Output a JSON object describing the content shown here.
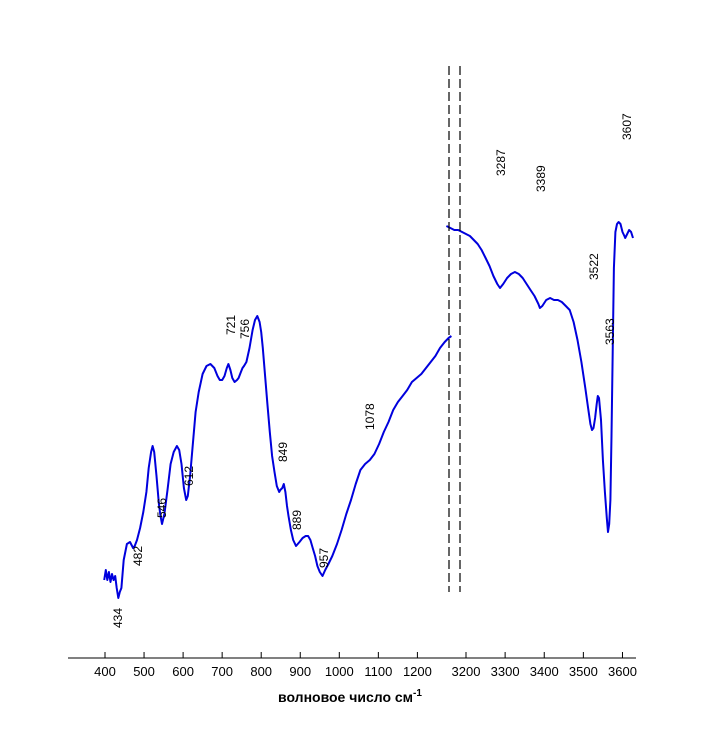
{
  "chart_data": {
    "type": "line",
    "title": "",
    "xlabel": "волновое число см",
    "xlabel_superscript": "-1",
    "ylabel": "",
    "grid": false,
    "axis_break": [
      1290,
      3150
    ],
    "xlim_left": [
      370,
      1290
    ],
    "xlim_right": [
      3150,
      3630
    ],
    "tick_labels": [
      "400",
      "500",
      "600",
      "700",
      "800",
      "900",
      "1000",
      "1100",
      "1200",
      "3200",
      "3300",
      "3400",
      "3500",
      "3600"
    ],
    "ticks_left": [
      400,
      500,
      600,
      700,
      800,
      900,
      1000,
      1100,
      1200
    ],
    "ticks_right": [
      3200,
      3300,
      3400,
      3500,
      3600
    ],
    "peak_labels": [
      "434",
      "482",
      "546",
      "612",
      "721",
      "756",
      "849",
      "889",
      "957",
      "1078",
      "3287",
      "3389",
      "3522",
      "3563",
      "3607"
    ],
    "series": [
      {
        "color": "#0000dd",
        "segments": [
          {
            "x": [
              398,
              402,
              406,
              410,
              414,
              418,
              422,
              426,
              430,
              434,
              438,
              442,
              448,
              456,
              464,
              472,
              476,
              482,
              490,
              498,
              506,
              512,
              518,
              522,
              526,
              532,
              538,
              542,
              546,
              552,
              560,
              568,
              576,
              584,
              590,
              596,
              602,
              608,
              612,
              618,
              624,
              632,
              640,
              650,
              660,
              670,
              680,
              688,
              694,
              700,
              706,
              712,
              716,
              721,
              726,
              732,
              738,
              742,
              748,
              752,
              756,
              762,
              770,
              778,
              784,
              790,
              796,
              800,
              804,
              810,
              816,
              822,
              828,
              834,
              840,
              846,
              849,
              854,
              858,
              862,
              866,
              870,
              876,
              882,
              889,
              898,
              906,
              914,
              920,
              926,
              932,
              938,
              944,
              950,
              957,
              964,
              972,
              982,
              994,
              1006,
              1018,
              1030,
              1042,
              1054,
              1066,
              1078,
              1090,
              1102,
              1114,
              1126,
              1138,
              1150,
              1162,
              1174,
              1186,
              1198,
              1210,
              1222,
              1234,
              1246,
              1258,
              1270,
              1280,
              1287
            ],
            "y": [
              -30,
              -25,
              -30,
              -26,
              -31,
              -27,
              -30,
              -28,
              -34,
              -39,
              -36,
              -34,
              -20,
              -12,
              -11,
              -14,
              -13,
              -10,
              -4,
              4,
              14,
              26,
              34,
              37,
              34,
              22,
              8,
              2,
              -2,
              3,
              15,
              28,
              34,
              37,
              35,
              28,
              16,
              10,
              12,
              22,
              36,
              54,
              64,
              73,
              77,
              78,
              76,
              72,
              70,
              70,
              72,
              76,
              78,
              75,
              71,
              69,
              70,
              71,
              74,
              76,
              77,
              79,
              86,
              95,
              100,
              102,
              99,
              94,
              86,
              72,
              58,
              44,
              32,
              24,
              17,
              14,
              15,
              16,
              18,
              14,
              7,
              2,
              -5,
              -10,
              -13,
              -11,
              -9,
              -8,
              -8,
              -10,
              -14,
              -18,
              -23,
              -26,
              -28,
              -25,
              -22,
              -18,
              -12,
              -5,
              3,
              10,
              18,
              25,
              28,
              30,
              33,
              38,
              44,
              49,
              55,
              59,
              62,
              65,
              69,
              71,
              73,
              76,
              79,
              82,
              86,
              89,
              91,
              92
            ]
          },
          {
            "x": [
              3150,
              3160,
              3170,
              3180,
              3190,
              3200,
              3210,
              3220,
              3230,
              3240,
              3250,
              3260,
              3270,
              3280,
              3287,
              3295,
              3305,
              3315,
              3325,
              3335,
              3345,
              3355,
              3365,
              3375,
              3385,
              3389,
              3395,
              3405,
              3415,
              3425,
              3435,
              3445,
              3455,
              3465,
              3475,
              3485,
              3495,
              3505,
              3512,
              3518,
              3522,
              3526,
              3530,
              3534,
              3537,
              3540,
              3545,
              3550,
              3555,
              3560,
              3563,
              3566,
              3569,
              3572,
              3575,
              3578,
              3582,
              3586,
              3590,
              3595,
              3600,
              3605,
              3607,
              3612,
              3617,
              3622,
              3627
            ],
            "y": [
              147,
              146,
              145,
              145,
              144,
              143,
              142,
              140,
              138,
              135,
              131,
              127,
              122,
              118,
              116,
              118,
              121,
              123,
              124,
              123,
              121,
              118,
              115,
              112,
              108,
              106,
              107,
              110,
              111,
              110,
              110,
              109,
              107,
              105,
              99,
              90,
              79,
              66,
              56,
              48,
              45,
              46,
              51,
              58,
              62,
              61,
              50,
              30,
              14,
              1,
              -6,
              -2,
              10,
              42,
              84,
              126,
              144,
              148,
              149,
              148,
              144,
              142,
              141,
              143,
              145,
              144,
              141
            ]
          }
        ]
      }
    ]
  }
}
